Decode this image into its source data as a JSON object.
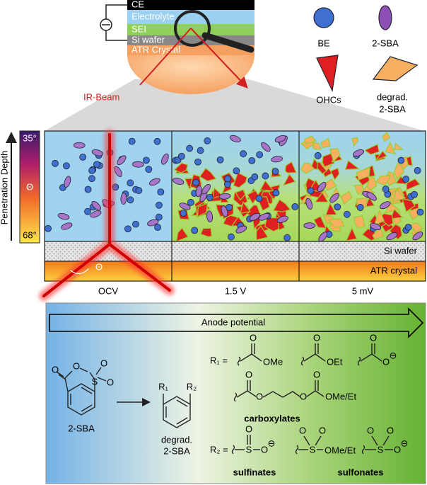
{
  "top_stack": {
    "layers": [
      "CE",
      "Electrolyte",
      "SEI",
      "Si wafer",
      "ATR Crystal"
    ],
    "beam_label": "IR-Beam"
  },
  "legend": {
    "items": [
      {
        "lines": [
          "BE"
        ]
      },
      {
        "lines": [
          "2-SBA"
        ]
      },
      {
        "lines": [
          "OHCs"
        ]
      },
      {
        "lines": [
          "degrad.",
          "2-SBA"
        ]
      }
    ]
  },
  "depth_scale": {
    "title": "Penetration Depth",
    "top": "35°",
    "middle": "Θ",
    "bottom": "68°"
  },
  "panels": {
    "labels": [
      "OCV",
      "1.5 V",
      "5 mV"
    ],
    "si_wafer": "Si wafer",
    "atr_crystal": "ATR crystal",
    "angle": "Θ"
  },
  "reaction": {
    "arrow_label": "Anode potential",
    "reactant": {
      "atoms": [
        "O",
        "O",
        "S",
        "O",
        "O"
      ],
      "label": "2-SBA"
    },
    "product": {
      "substituents": [
        "R₁",
        "R₂"
      ],
      "lines": [
        "degrad.",
        "2-SBA"
      ]
    },
    "r1": {
      "label": "R₁ =",
      "groups": [
        {
          "atoms": [
            "O",
            "OMe"
          ]
        },
        {
          "atoms": [
            "O",
            "OEt"
          ]
        },
        {
          "atoms": [
            "O",
            "O",
            "⊖"
          ]
        },
        {
          "atoms": [
            "O",
            "O",
            "O",
            "O",
            "OMe/Et"
          ]
        }
      ],
      "class_label": "carboxylates"
    },
    "r2": {
      "label": "R₂ =",
      "groups": [
        {
          "atoms": [
            "S",
            "O",
            "O",
            "⊖"
          ]
        },
        {
          "atoms": [
            "S",
            "O",
            "O",
            "OMe/Et"
          ]
        },
        {
          "atoms": [
            "S",
            "O",
            "O",
            "O",
            "⊖"
          ]
        }
      ],
      "class_labels": [
        "sulfinates",
        "sulfonates"
      ]
    }
  }
}
